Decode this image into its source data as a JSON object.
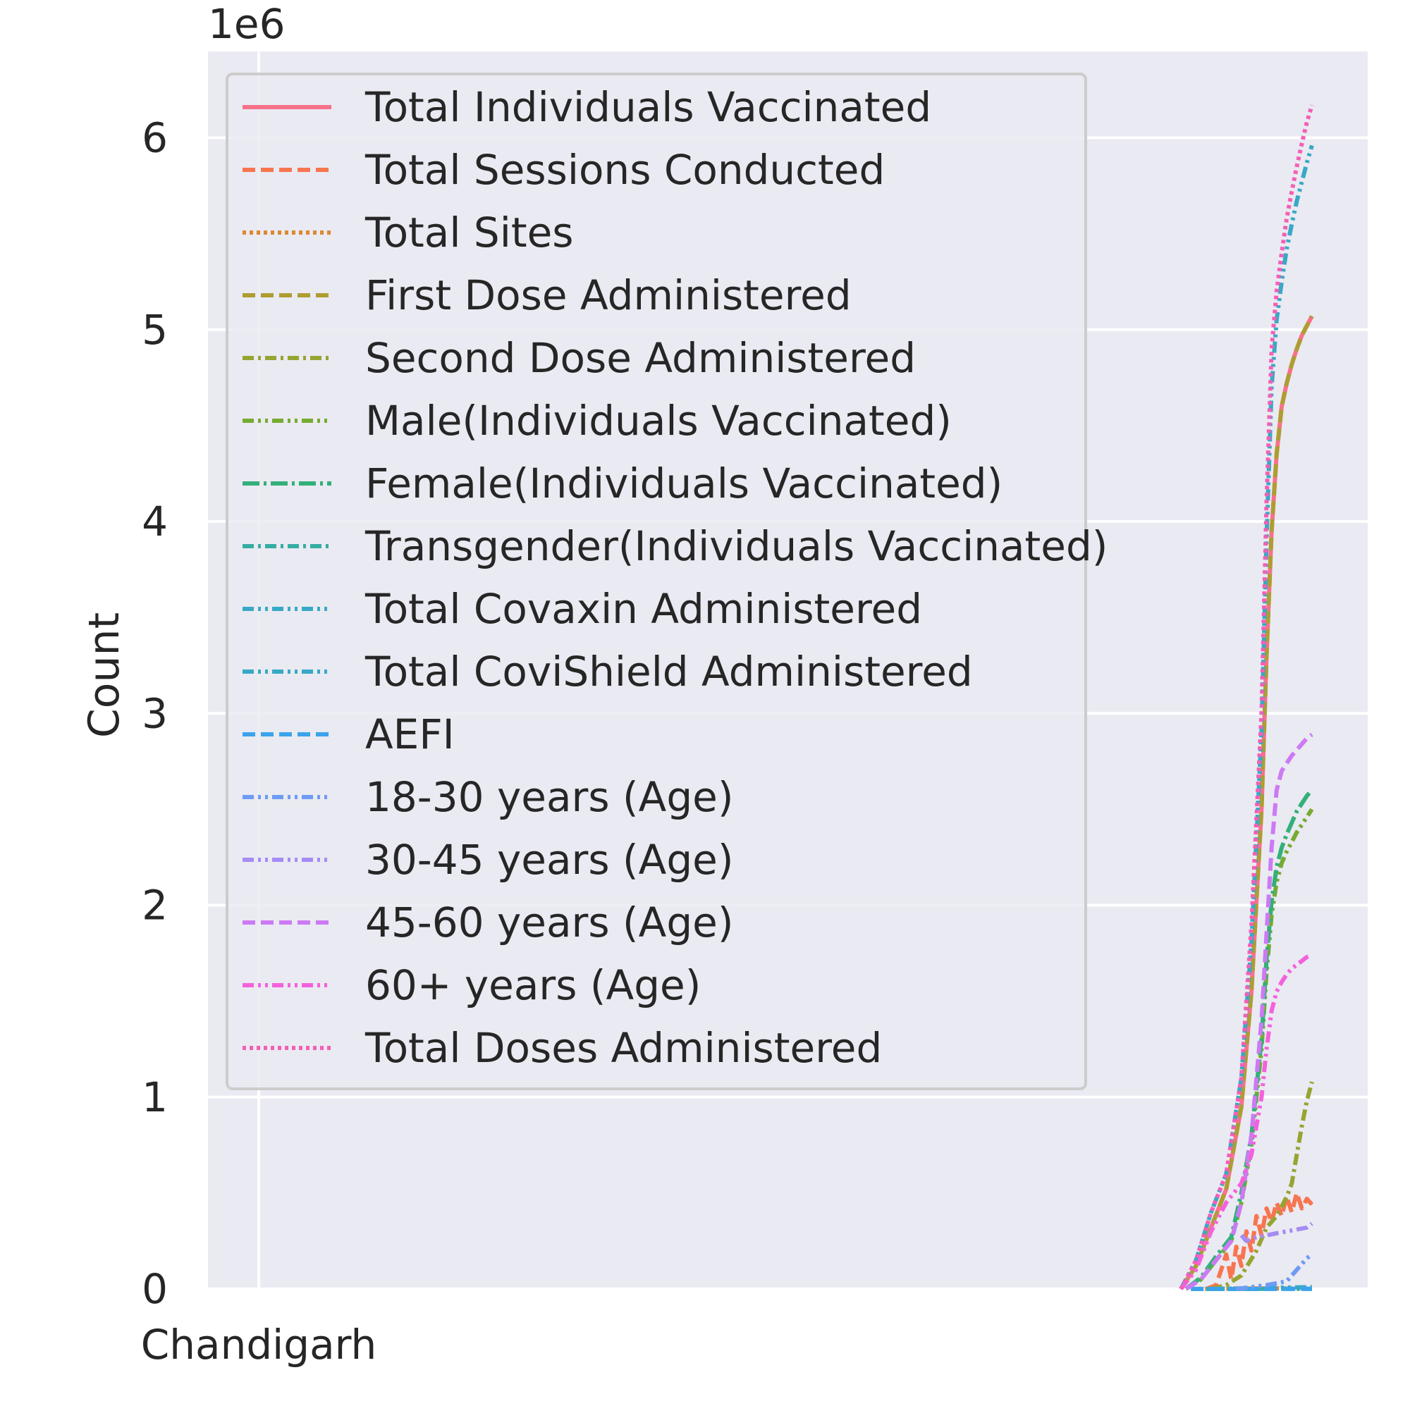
{
  "chart_data": {
    "type": "line",
    "xlabel": "",
    "ylabel": "Count",
    "y_offset_label": "1e6",
    "x_tick_labels": [
      "Chandigarh"
    ],
    "y_ticks": [
      0,
      1,
      2,
      3,
      4,
      5,
      6
    ],
    "ylim": [
      0,
      6.45
    ],
    "y_unit_scale": 1000000,
    "grid": true,
    "legend_position": "upper left",
    "x_index_range": [
      0,
      210
    ],
    "series": [
      {
        "name": "Total Individuals Vaccinated",
        "color": "#f77189",
        "dash": "solid",
        "x": [
          183,
          186,
          189,
          192,
          195,
          197,
          199,
          200,
          201,
          202,
          203,
          204,
          205,
          206,
          207,
          208,
          209
        ],
        "y": [
          0,
          0.12,
          0.32,
          0.52,
          0.95,
          1.55,
          2.5,
          3.3,
          3.95,
          4.35,
          4.6,
          4.72,
          4.82,
          4.9,
          4.97,
          5.02,
          5.07
        ]
      },
      {
        "name": "Total Sessions Conducted",
        "color": "#f7754f",
        "dash": "dashed",
        "x": [
          188,
          190,
          191,
          192,
          193,
          194,
          195,
          196,
          197,
          198,
          199,
          200,
          201,
          202,
          203,
          204,
          205,
          206,
          207,
          208,
          209
        ],
        "y": [
          0,
          0.02,
          0.1,
          0.18,
          0.05,
          0.22,
          0.12,
          0.3,
          0.2,
          0.38,
          0.28,
          0.42,
          0.35,
          0.45,
          0.38,
          0.48,
          0.4,
          0.5,
          0.42,
          0.47,
          0.44
        ]
      },
      {
        "name": "Total Sites",
        "color": "#dc8932",
        "dash": "dotted",
        "x": [
          185,
          195,
          209
        ],
        "y": [
          0,
          0.003,
          0.003
        ]
      },
      {
        "name": "First Dose Administered",
        "color": "#ae9d31",
        "dash": "dashed",
        "x": [
          183,
          186,
          189,
          192,
          195,
          197,
          199,
          200,
          201,
          202,
          203,
          204,
          205,
          206,
          207,
          208,
          209
        ],
        "y": [
          0,
          0.12,
          0.32,
          0.52,
          0.95,
          1.55,
          2.5,
          3.3,
          3.95,
          4.35,
          4.6,
          4.72,
          4.82,
          4.9,
          4.97,
          5.02,
          5.07
        ]
      },
      {
        "name": "Second Dose Administered",
        "color": "#97a431",
        "dash": "dashdot",
        "x": [
          189,
          192,
          195,
          198,
          200,
          202,
          204,
          205,
          206,
          207,
          208,
          209
        ],
        "y": [
          0,
          0.02,
          0.07,
          0.2,
          0.32,
          0.38,
          0.48,
          0.55,
          0.7,
          0.85,
          0.98,
          1.08
        ]
      },
      {
        "name": "Male(Individuals Vaccinated)",
        "color": "#77ab31",
        "dash": "dashdotdot",
        "x": [
          184,
          187,
          190,
          193,
          195,
          197,
          199,
          200,
          201,
          202,
          203,
          204,
          205,
          206,
          207,
          208,
          209
        ],
        "y": [
          0,
          0.05,
          0.15,
          0.25,
          0.45,
          0.75,
          1.25,
          1.65,
          1.95,
          2.12,
          2.22,
          2.28,
          2.33,
          2.38,
          2.42,
          2.46,
          2.5
        ]
      },
      {
        "name": "Female(Individuals Vaccinated)",
        "color": "#33b07a",
        "dash": "longdashdot",
        "x": [
          184,
          187,
          190,
          193,
          195,
          197,
          199,
          200,
          201,
          202,
          203,
          204,
          205,
          206,
          207,
          208,
          209
        ],
        "y": [
          0,
          0.06,
          0.17,
          0.27,
          0.5,
          0.8,
          1.3,
          1.72,
          2.02,
          2.2,
          2.3,
          2.37,
          2.43,
          2.49,
          2.53,
          2.57,
          2.6
        ]
      },
      {
        "name": "Transgender(Individuals Vaccinated)",
        "color": "#36ada4",
        "dash": "dashdot",
        "x": [
          185,
          209
        ],
        "y": [
          0,
          0.001
        ]
      },
      {
        "name": "Total Covaxin Administered",
        "color": "#38a9c5",
        "dash": "dashdotdot",
        "x": [
          188,
          209
        ],
        "y": [
          0,
          0.01
        ]
      },
      {
        "name": "Total CoviShield Administered",
        "color": "#38a9c5",
        "dash": "dashdotdot",
        "x": [
          183,
          186,
          189,
          192,
          195,
          197,
          199,
          200,
          201,
          202,
          203,
          204,
          205,
          206,
          207,
          208,
          209
        ],
        "y": [
          0,
          0.15,
          0.4,
          0.6,
          1.1,
          1.8,
          2.9,
          3.9,
          4.7,
          5.05,
          5.25,
          5.42,
          5.55,
          5.67,
          5.77,
          5.87,
          5.96
        ]
      },
      {
        "name": "AEFI",
        "color": "#3ba3ec",
        "dash": "dashed",
        "x": [
          185,
          209
        ],
        "y": [
          0,
          0.0005
        ]
      },
      {
        "name": "18-30 years (Age)",
        "color": "#6e9bf4",
        "dash": "dashdotdot",
        "x": [
          194,
          197,
          200,
          202,
          204,
          205,
          206,
          207,
          208,
          209
        ],
        "y": [
          0,
          0.01,
          0.02,
          0.03,
          0.04,
          0.07,
          0.1,
          0.13,
          0.16,
          0.18
        ]
      },
      {
        "name": "30-45 years (Age)",
        "color": "#a48cf4",
        "dash": "dashdotdot",
        "x": [
          195,
          196,
          198,
          200,
          202,
          204,
          206,
          208,
          209
        ],
        "y": [
          0.28,
          0.25,
          0.27,
          0.28,
          0.29,
          0.3,
          0.31,
          0.32,
          0.34
        ]
      },
      {
        "name": "45-60 years (Age)",
        "color": "#cc7af4",
        "dash": "dashed",
        "x": [
          184,
          187,
          190,
          193,
          195,
          197,
          199,
          200,
          201,
          202,
          203,
          204,
          205,
          206,
          207,
          208,
          209
        ],
        "y": [
          0,
          0.05,
          0.15,
          0.25,
          0.45,
          0.8,
          1.4,
          1.85,
          2.3,
          2.6,
          2.7,
          2.74,
          2.78,
          2.81,
          2.84,
          2.87,
          2.89
        ]
      },
      {
        "name": "60+ years (Age)",
        "color": "#f461dd",
        "dash": "dashdotdot",
        "x": [
          183,
          186,
          189,
          192,
          195,
          197,
          199,
          200,
          201,
          202,
          203,
          204,
          205,
          206,
          207,
          208,
          209
        ],
        "y": [
          0,
          0.1,
          0.3,
          0.45,
          0.55,
          0.7,
          1.0,
          1.25,
          1.45,
          1.55,
          1.6,
          1.64,
          1.67,
          1.69,
          1.71,
          1.73,
          1.74
        ]
      },
      {
        "name": "Total Doses Administered",
        "color": "#f45fb6",
        "dash": "dotted",
        "x": [
          183,
          186,
          189,
          192,
          195,
          197,
          199,
          200,
          201,
          202,
          203,
          204,
          205,
          206,
          207,
          208,
          209
        ],
        "y": [
          0,
          0.15,
          0.4,
          0.6,
          1.1,
          1.9,
          3.0,
          4.1,
          4.9,
          5.2,
          5.4,
          5.58,
          5.72,
          5.85,
          5.97,
          6.08,
          6.17
        ]
      }
    ]
  }
}
